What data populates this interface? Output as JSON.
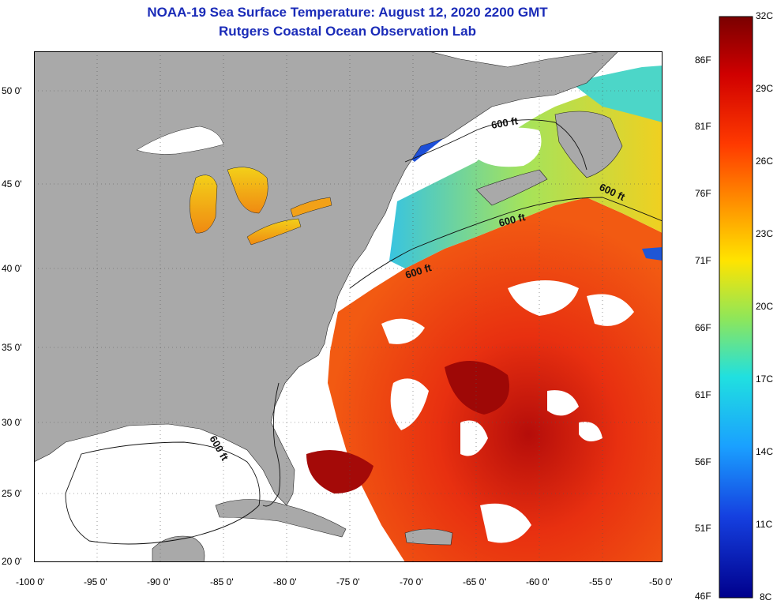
{
  "header": {
    "title": "NOAA-19 Sea Surface Temperature:  August 12, 2020 2200 GMT",
    "subtitle": "Rutgers Coastal Ocean Observation Lab"
  },
  "axes": {
    "lat_labels": [
      "50 0'",
      "45 0'",
      "40 0'",
      "35 0'",
      "30 0'",
      "25 0'",
      "20 0'"
    ],
    "lon_labels": [
      "-100 0'",
      "-95 0'",
      "-90 0'",
      "-85 0'",
      "-80 0'",
      "-75 0'",
      "-70 0'",
      "-65 0'",
      "-60 0'",
      "-55 0'",
      "-50 0'"
    ]
  },
  "colorbar": {
    "fahrenheit_labels": [
      "86F",
      "81F",
      "76F",
      "71F",
      "66F",
      "61F",
      "56F",
      "51F",
      "46F"
    ],
    "celsius_labels": [
      "32C",
      "29C",
      "26C",
      "23C",
      "20C",
      "17C",
      "14C",
      "11C",
      "8C"
    ],
    "range_c": [
      8,
      32
    ]
  },
  "contours": {
    "label": "600 ft"
  },
  "colors": {
    "land": "#a9a9a9",
    "no_data": "#ffffff",
    "title": "#1a2bb8"
  }
}
